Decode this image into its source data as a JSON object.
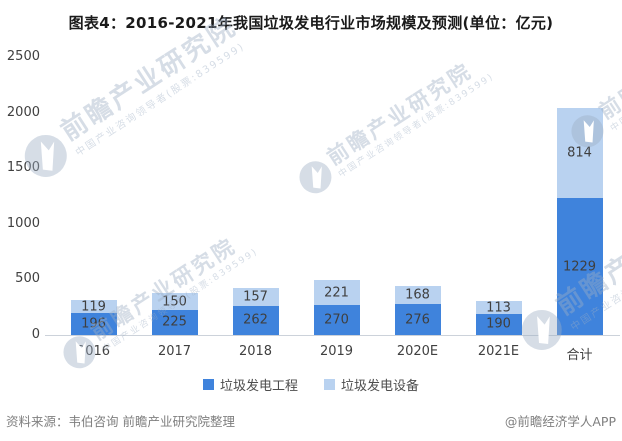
{
  "title": "图表4：2016-2021年我国垃圾发电行业市场规模及预测(单位：亿元)",
  "legend": {
    "items": [
      {
        "label": "垃圾发电工程",
        "color": "#3f83dc"
      },
      {
        "label": "垃圾发电设备",
        "color": "#b9d2f0"
      }
    ]
  },
  "footer": {
    "source": "资料来源：韦伯咨询 前瞻产业研究院整理",
    "credit": "@前瞻经济学人APP"
  },
  "watermark": {
    "main": "前瞻产业研究院",
    "sub": "中国产业咨询领导者(股票:839599)"
  },
  "colors": {
    "series_engineering": "#3f83dc",
    "series_equipment": "#b9d2f0",
    "axis_line": "#ccd2da",
    "value_label": "#3f3f3f",
    "tick_label": "#404040",
    "footer_text": "#7f7f7f"
  },
  "chart_data": {
    "type": "bar",
    "stacked": true,
    "title": "图表4：2016-2021年我国垃圾发电行业市场规模及预测(单位：亿元)",
    "unit": "亿元",
    "categories": [
      "2016",
      "2017",
      "2018",
      "2019",
      "2020E",
      "2021E",
      "合计"
    ],
    "series": [
      {
        "name": "垃圾发电工程",
        "color": "#3f83dc",
        "values": [
          196,
          225,
          262,
          270,
          276,
          190,
          1229
        ]
      },
      {
        "name": "垃圾发电设备",
        "color": "#b9d2f0",
        "values": [
          119,
          150,
          157,
          221,
          168,
          113,
          814
        ]
      }
    ],
    "xlabel": "",
    "ylabel": "",
    "ylim": [
      0,
      2500
    ],
    "yticks": [
      0,
      500,
      1000,
      1500,
      2000,
      2500
    ],
    "grid": false,
    "legend_position": "bottom"
  }
}
